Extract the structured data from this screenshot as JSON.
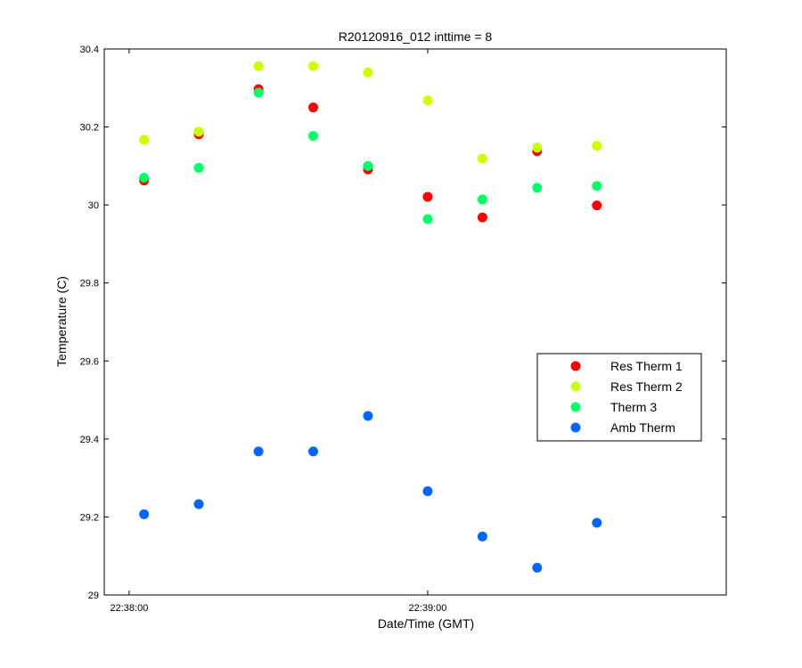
{
  "chart_data": {
    "type": "scatter",
    "title": "R20120916_012 inttime = 8",
    "xlabel": "Date/Time (GMT)",
    "ylabel": "Temperature (C)",
    "xlim": [
      "22:37:55",
      "22:40:00"
    ],
    "ylim": [
      29,
      30.4
    ],
    "x_ticks": [
      "22:38:00",
      "22:39:00"
    ],
    "y_ticks": [
      29,
      29.2,
      29.4,
      29.6,
      29.8,
      30,
      30.2,
      30.4
    ],
    "y_tick_labels": [
      "29",
      "29.2",
      "29.4",
      "29.6",
      "29.8",
      "30",
      "30.2",
      "30.4"
    ],
    "grid": false,
    "legend_position": "right",
    "x": [
      "22:38:03",
      "22:38:14",
      "22:38:26",
      "22:38:37",
      "22:38:48",
      "22:39:00",
      "22:39:11",
      "22:39:22",
      "22:39:34"
    ],
    "series": [
      {
        "name": "Res Therm 1",
        "color": "#ff0000",
        "values": [
          30.063,
          30.181,
          30.297,
          30.25,
          30.091,
          30.021,
          29.968,
          30.138,
          29.999
        ]
      },
      {
        "name": "Res Therm 2",
        "color": "#ccff00",
        "values": [
          30.167,
          30.188,
          30.356,
          30.356,
          30.34,
          30.268,
          30.119,
          30.147,
          30.152
        ]
      },
      {
        "name": "Therm 3",
        "color": "#00ff66",
        "values": [
          30.07,
          30.095,
          30.288,
          30.177,
          30.1,
          29.964,
          30.014,
          30.044,
          30.049
        ]
      },
      {
        "name": "Amb Therm",
        "color": "#0066ff",
        "values": [
          29.207,
          29.233,
          29.368,
          29.368,
          29.459,
          29.266,
          29.15,
          29.07,
          29.185
        ]
      }
    ]
  }
}
